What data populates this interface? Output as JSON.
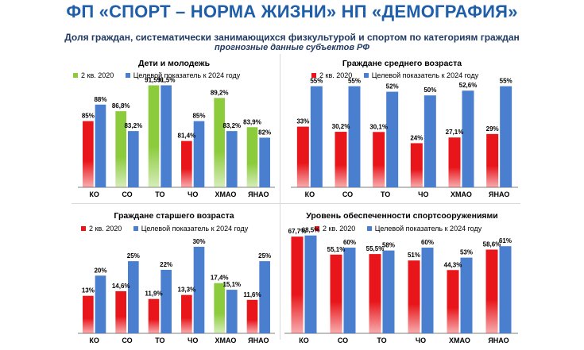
{
  "title": "ФП «СПОРТ – НОРМА ЖИЗНИ» НП «ДЕМОГРАФИЯ»",
  "subtitle": "Доля граждан, систематически занимающихся физкультурой и спортом по категориям граждан",
  "subtitle_note": "прогнозные данные субъектов РФ",
  "colors": {
    "current": "#e8161b",
    "target": "#4a7fd0",
    "current_green": "#8ccb3c"
  },
  "chart_data": [
    {
      "type": "bar",
      "title": "Дети и молодежь",
      "series_labels": {
        "current": "2 кв. 2020",
        "target": "Целевой показатель к 2024 году"
      },
      "legend_color_current": "#8ccb3c",
      "categories": [
        "КО",
        "СО",
        "ТО",
        "ЧО",
        "ХМАО",
        "ЯНАО"
      ],
      "current": [
        85,
        86.8,
        91.5,
        81.4,
        89.2,
        83.9
      ],
      "target": [
        88,
        83.2,
        91.5,
        85,
        83.2,
        82
      ],
      "current_labels": [
        "85%",
        "86,8%",
        "91,5%",
        "81,4%",
        "89,2%",
        "83,9%"
      ],
      "target_labels": [
        "88%",
        "83,2%",
        "91,5%",
        "85%",
        "83,2%",
        "82%"
      ],
      "current_colors": [
        "#e8161b",
        "#8ccb3c",
        "#8ccb3c",
        "#e8161b",
        "#8ccb3c",
        "#8ccb3c"
      ],
      "ylim": [
        73,
        92
      ]
    },
    {
      "type": "bar",
      "title": "Граждане среднего возраста",
      "series_labels": {
        "current": "2 кв. 2020",
        "target": "Целевой показатель к 2024 году"
      },
      "legend_color_current": "#e8161b",
      "categories": [
        "КО",
        "СО",
        "ТО",
        "ЧО",
        "ХМАО",
        "ЯНАО"
      ],
      "current": [
        33,
        30.2,
        30.1,
        24,
        27.1,
        29
      ],
      "target": [
        55,
        55,
        52,
        50,
        52.6,
        55
      ],
      "current_labels": [
        "33%",
        "30,2%",
        "30,1%",
        "24%",
        "27,1%",
        "29%"
      ],
      "target_labels": [
        "55%",
        "55%",
        "52%",
        "50%",
        "52,6%",
        "55%"
      ],
      "current_colors": [
        "#e8161b",
        "#e8161b",
        "#e8161b",
        "#e8161b",
        "#e8161b",
        "#e8161b"
      ],
      "ylim": [
        0,
        57
      ]
    },
    {
      "type": "bar",
      "title": "Граждане старшего  возраста",
      "series_labels": {
        "current": "2 кв. 2020",
        "target": "Целевой показатель к 2024 году"
      },
      "legend_color_current": "#e8161b",
      "categories": [
        "КО",
        "СО",
        "ТО",
        "ЧО",
        "ХМАО",
        "ЯНАО"
      ],
      "current": [
        13,
        14.6,
        11.9,
        13.3,
        17.4,
        11.6
      ],
      "target": [
        20,
        25,
        22,
        30,
        15.1,
        25
      ],
      "current_labels": [
        "13%",
        "14,6%",
        "11,9%",
        "13,3%",
        "17,4%",
        "11,6%"
      ],
      "target_labels": [
        "20%",
        "25%",
        "22%",
        "30%",
        "15,1%",
        "25%"
      ],
      "current_colors": [
        "#e8161b",
        "#e8161b",
        "#e8161b",
        "#e8161b",
        "#8ccb3c",
        "#e8161b"
      ],
      "ylim": [
        0,
        33
      ]
    },
    {
      "type": "bar",
      "title": "Уровень обеспеченности спортсооружениями",
      "series_labels": {
        "current": "2 кв. 2020",
        "target": "Целевой показатель к 2024 году"
      },
      "legend_color_current": "#e8161b",
      "categories": [
        "КО",
        "СО",
        "ТО",
        "ЧО",
        "ХМАО",
        "ЯНАО"
      ],
      "current": [
        67.7,
        55.1,
        55.5,
        51,
        44.3,
        58.6
      ],
      "target": [
        68.5,
        60,
        58,
        60,
        53,
        61
      ],
      "current_labels": [
        "67,7%",
        "55,1%",
        "55,5%",
        "51%",
        "44,3%",
        "58,6%"
      ],
      "target_labels": [
        "68,5%",
        "60%",
        "58%",
        "60%",
        "53%",
        "61%"
      ],
      "current_colors": [
        "#e8161b",
        "#e8161b",
        "#e8161b",
        "#e8161b",
        "#e8161b",
        "#e8161b"
      ],
      "ylim": [
        0,
        70
      ]
    }
  ]
}
